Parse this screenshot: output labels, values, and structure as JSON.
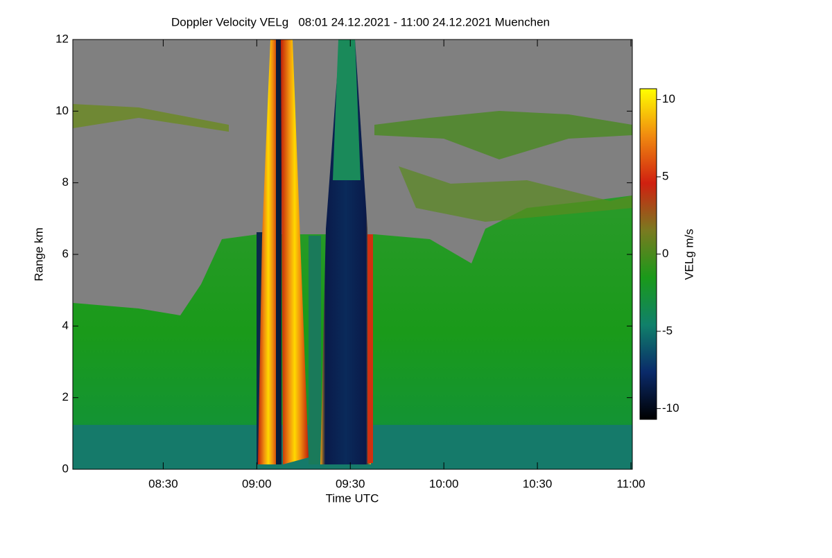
{
  "chart_data": {
    "type": "heatmap",
    "title": "Doppler Velocity VELg   08:01 24.12.2021 - 11:00 24.12.2021 Muenchen",
    "xlabel": "Time UTC",
    "ylabel": "Range km",
    "colorbar_label": "VELg m/s",
    "xlim": [
      8.0167,
      11.0
    ],
    "xticks": [
      {
        "value": 8.5,
        "label": "08:30"
      },
      {
        "value": 9.0,
        "label": "09:00"
      },
      {
        "value": 9.5,
        "label": "09:30"
      },
      {
        "value": 10.0,
        "label": "10:00"
      },
      {
        "value": 10.5,
        "label": "10:30"
      },
      {
        "value": 11.0,
        "label": "11:00"
      }
    ],
    "ylim": [
      0,
      12
    ],
    "yticks": [
      0,
      2,
      4,
      6,
      8,
      10,
      12
    ],
    "clim": [
      -10.7,
      10.7
    ],
    "cticks": [
      -10,
      -5,
      0,
      5,
      10
    ],
    "colormap": [
      "#000000",
      "#0a2a6a",
      "#10806a",
      "#1a9a1a",
      "#7a7a20",
      "#d02010",
      "#f08a10",
      "#ffff00"
    ]
  }
}
